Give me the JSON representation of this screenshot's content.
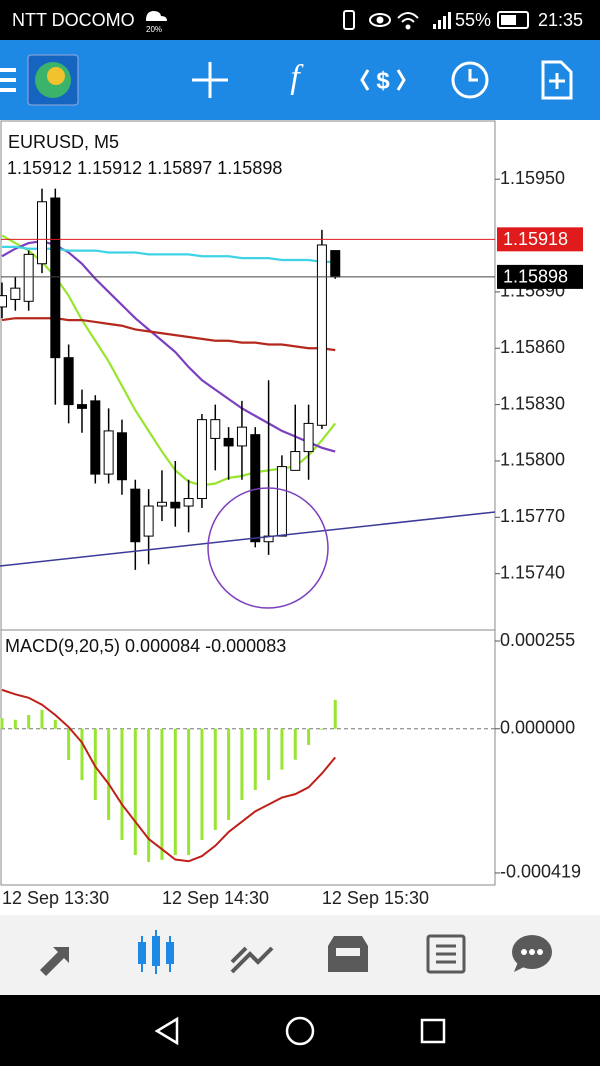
{
  "status_bar": {
    "carrier": "NTT DOCOMO",
    "icon_label": "20%",
    "battery": "55%",
    "time": "21:35"
  },
  "chart_data": [
    {
      "type": "candlestick",
      "title": "EURUSD, M5",
      "categories": [
        "12 Sep 13:30",
        null,
        null,
        null,
        null,
        null,
        null,
        null,
        null,
        null,
        null,
        null,
        "12 Sep 14:30",
        null,
        null,
        null,
        null,
        null,
        null,
        null,
        null,
        null,
        null,
        null,
        "12 Sep 15:30",
        null
      ],
      "open": [
        1.15882,
        1.15886,
        1.15885,
        1.15905,
        1.1594,
        1.15855,
        1.1583,
        1.15832,
        1.15793,
        1.15815,
        1.15785,
        1.1576,
        1.15776,
        1.15778,
        1.15776,
        1.1578,
        1.15812,
        1.15812,
        1.15808,
        1.15814,
        1.15757,
        1.1576,
        1.15795,
        1.15805,
        1.15819,
        1.15912
      ],
      "high": [
        1.15895,
        1.15898,
        1.15912,
        1.15945,
        1.15945,
        1.15862,
        1.15838,
        1.15835,
        1.15828,
        1.15822,
        1.1579,
        1.15785,
        1.15795,
        1.158,
        1.1579,
        1.15825,
        1.1583,
        1.15818,
        1.15832,
        1.15818,
        1.15843,
        1.15803,
        1.1583,
        1.1583,
        1.15923,
        1.15912
      ],
      "low": [
        1.15876,
        1.1588,
        1.1588,
        1.159,
        1.1583,
        1.1582,
        1.15815,
        1.15788,
        1.15788,
        1.15782,
        1.15742,
        1.15745,
        1.15768,
        1.15765,
        1.15762,
        1.15775,
        1.15795,
        1.1579,
        1.1579,
        1.15754,
        1.1575,
        1.1576,
        1.15795,
        1.1579,
        1.15817,
        1.15897
      ],
      "close": [
        1.15888,
        1.15892,
        1.1591,
        1.15938,
        1.15855,
        1.1583,
        1.15828,
        1.15793,
        1.15816,
        1.1579,
        1.15757,
        1.15776,
        1.15778,
        1.15775,
        1.1578,
        1.15822,
        1.15822,
        1.15808,
        1.15818,
        1.15757,
        1.1576,
        1.15797,
        1.15805,
        1.1582,
        1.15915,
        1.15898
      ],
      "up_color": "#ffffff",
      "down_color": "#000000",
      "bid": 1.15898,
      "ask": 1.15918,
      "bid_color": "#000000",
      "ask_color": "#e01b1b",
      "series": [
        {
          "color": "#97e52e",
          "values": [
            1.1592,
            1.15916,
            1.15912,
            1.15906,
            1.15898,
            1.15888,
            1.15875,
            1.15864,
            1.15853,
            1.1584,
            1.15827,
            1.15816,
            1.15805,
            1.15795,
            1.15789,
            1.15787,
            1.15788,
            1.15791,
            1.15792,
            1.15794,
            1.15795,
            1.15796,
            1.15797,
            1.15803,
            1.15811,
            1.1582
          ]
        },
        {
          "color": "#7b3fbf",
          "values": [
            1.15909,
            1.15913,
            1.15916,
            1.15917,
            1.15915,
            1.15911,
            1.15905,
            1.15897,
            1.1589,
            1.15883,
            1.15876,
            1.1587,
            1.15864,
            1.15858,
            1.1585,
            1.15843,
            1.15838,
            1.15833,
            1.15828,
            1.15824,
            1.1582,
            1.15816,
            1.15813,
            1.1581,
            1.15807,
            1.15805
          ]
        },
        {
          "color": "#b5281e",
          "values": [
            1.15875,
            1.15876,
            1.15876,
            1.15876,
            1.15876,
            1.15875,
            1.15875,
            1.15874,
            1.15873,
            1.15872,
            1.1587,
            1.15869,
            1.15868,
            1.15867,
            1.15866,
            1.15865,
            1.15864,
            1.15864,
            1.15863,
            1.15863,
            1.15862,
            1.15862,
            1.15861,
            1.1586,
            1.1586,
            1.15859
          ]
        },
        {
          "color": "#3fd3e6",
          "values": [
            1.15914,
            1.15914,
            1.15913,
            1.15913,
            1.15913,
            1.15912,
            1.15912,
            1.15912,
            1.15911,
            1.15911,
            1.15911,
            1.1591,
            1.1591,
            1.1591,
            1.1591,
            1.15909,
            1.15909,
            1.15909,
            1.15908,
            1.15908,
            1.15908,
            1.15907,
            1.15907,
            1.15907,
            1.15906,
            1.15906
          ]
        }
      ],
      "ylim": [
        1.1571,
        1.15981
      ],
      "yticks": [
        {
          "value": 1.1595,
          "label": "1.15950"
        },
        {
          "value": 1.1589,
          "label": "1.15890"
        },
        {
          "value": 1.1586,
          "label": "1.15860"
        },
        {
          "value": 1.1583,
          "label": "1.15830"
        },
        {
          "value": 1.158,
          "label": "1.15800"
        },
        {
          "value": 1.1577,
          "label": "1.15770"
        },
        {
          "value": 1.1574,
          "label": "1.15740"
        }
      ]
    },
    {
      "type": "macd",
      "title": "MACD(9,20,5)",
      "values": [
        3.1e-05,
        2.6e-05,
        4e-05,
        5.5e-05,
        2.6e-05,
        -9.1e-05,
        -0.000149,
        -0.000207,
        -0.000265,
        -0.000323,
        -0.000367,
        -0.000387,
        -0.000381,
        -0.000367,
        -0.000367,
        -0.000323,
        -0.000294,
        -0.000265,
        -0.000207,
        -0.000178,
        -0.000149,
        -0.000119,
        -9e-05,
        -4.7e-05,
        -3e-06,
        8.4e-05
      ],
      "color": "#97e52e",
      "signal": {
        "color": "#c0201a",
        "values": [
          0.000113,
          0.0001,
          9e-05,
          7e-05,
          4e-05,
          5e-06,
          -4e-05,
          -0.00011,
          -0.00016,
          -0.00022,
          -0.00027,
          -0.00032,
          -0.00035,
          -0.00038,
          -0.000385,
          -0.00037,
          -0.00034,
          -0.0003,
          -0.00027,
          -0.00024,
          -0.00022,
          -0.0002,
          -0.00019,
          -0.00017,
          -0.00013,
          -8.3e-05
        ]
      },
      "ylim": [
        -0.000454,
        0.000287
      ],
      "yticks": [
        0.000255,
        {
          "value": 0,
          "label": "0.000000"
        },
        -0.000419
      ]
    }
  ]
}
